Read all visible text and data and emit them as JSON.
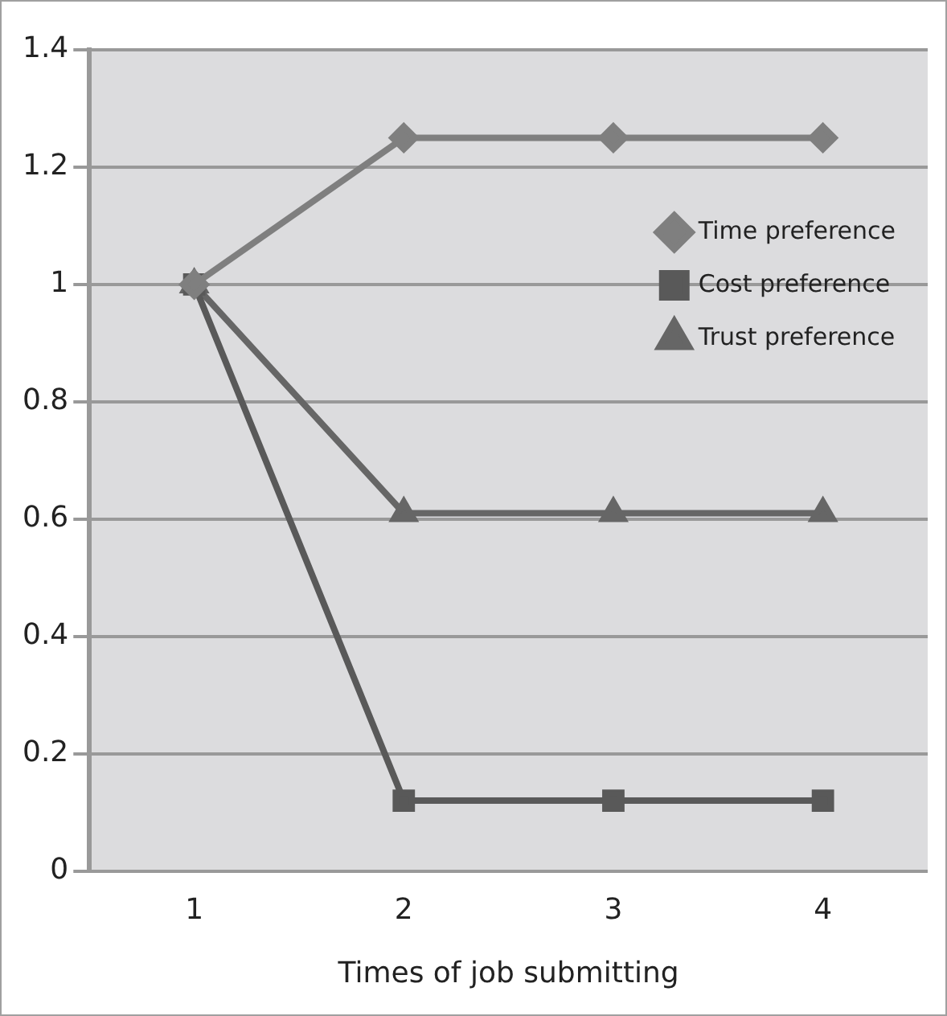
{
  "chart_data": {
    "type": "line",
    "xlabel": "Times of job submitting",
    "categories": [
      "1",
      "2",
      "3",
      "4"
    ],
    "series": [
      {
        "name": "Time preference",
        "color": "#7f7f7f",
        "marker": "diamond",
        "values": [
          1,
          1.25,
          1.25,
          1.25
        ]
      },
      {
        "name": "Cost preference",
        "color": "#595959",
        "marker": "square",
        "values": [
          1,
          0.12,
          0.12,
          0.12
        ]
      },
      {
        "name": "Trust preference",
        "color": "#666666",
        "marker": "triangle",
        "values": [
          1,
          0.61,
          0.61,
          0.61
        ]
      }
    ],
    "ylim": [
      0,
      1.4
    ],
    "yticks": [
      0,
      0.2,
      0.4,
      0.6,
      0.8,
      1,
      1.2,
      1.4
    ],
    "grid": "y",
    "legend": "top right",
    "line_style": "solid"
  }
}
